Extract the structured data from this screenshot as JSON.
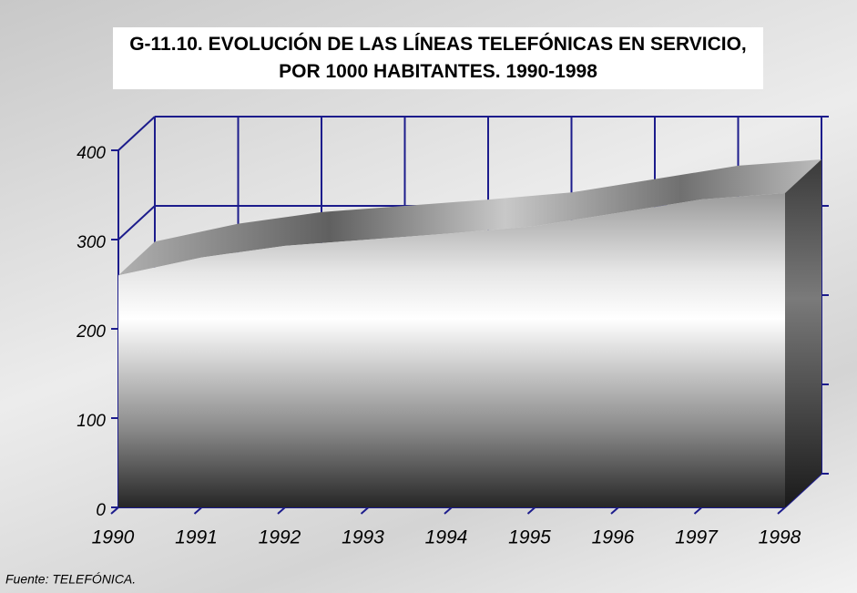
{
  "chart_data": {
    "type": "area3d",
    "title": "G-11.10. EVOLUCIÓN DE LAS LÍNEAS TELEFÓNICAS EN SERVICIO, POR 1000 HABITANTES. 1990-1998",
    "categories": [
      "1990",
      "1991",
      "1992",
      "1993",
      "1994",
      "1995",
      "1996",
      "1997",
      "1998"
    ],
    "values": [
      260,
      280,
      293,
      300,
      307,
      315,
      330,
      345,
      352
    ],
    "ylim": [
      0,
      400
    ],
    "yticks": [
      0,
      100,
      200,
      300,
      400
    ],
    "grid": true,
    "color": "#808080",
    "source": "Fuente: TELEFÓNICA."
  }
}
